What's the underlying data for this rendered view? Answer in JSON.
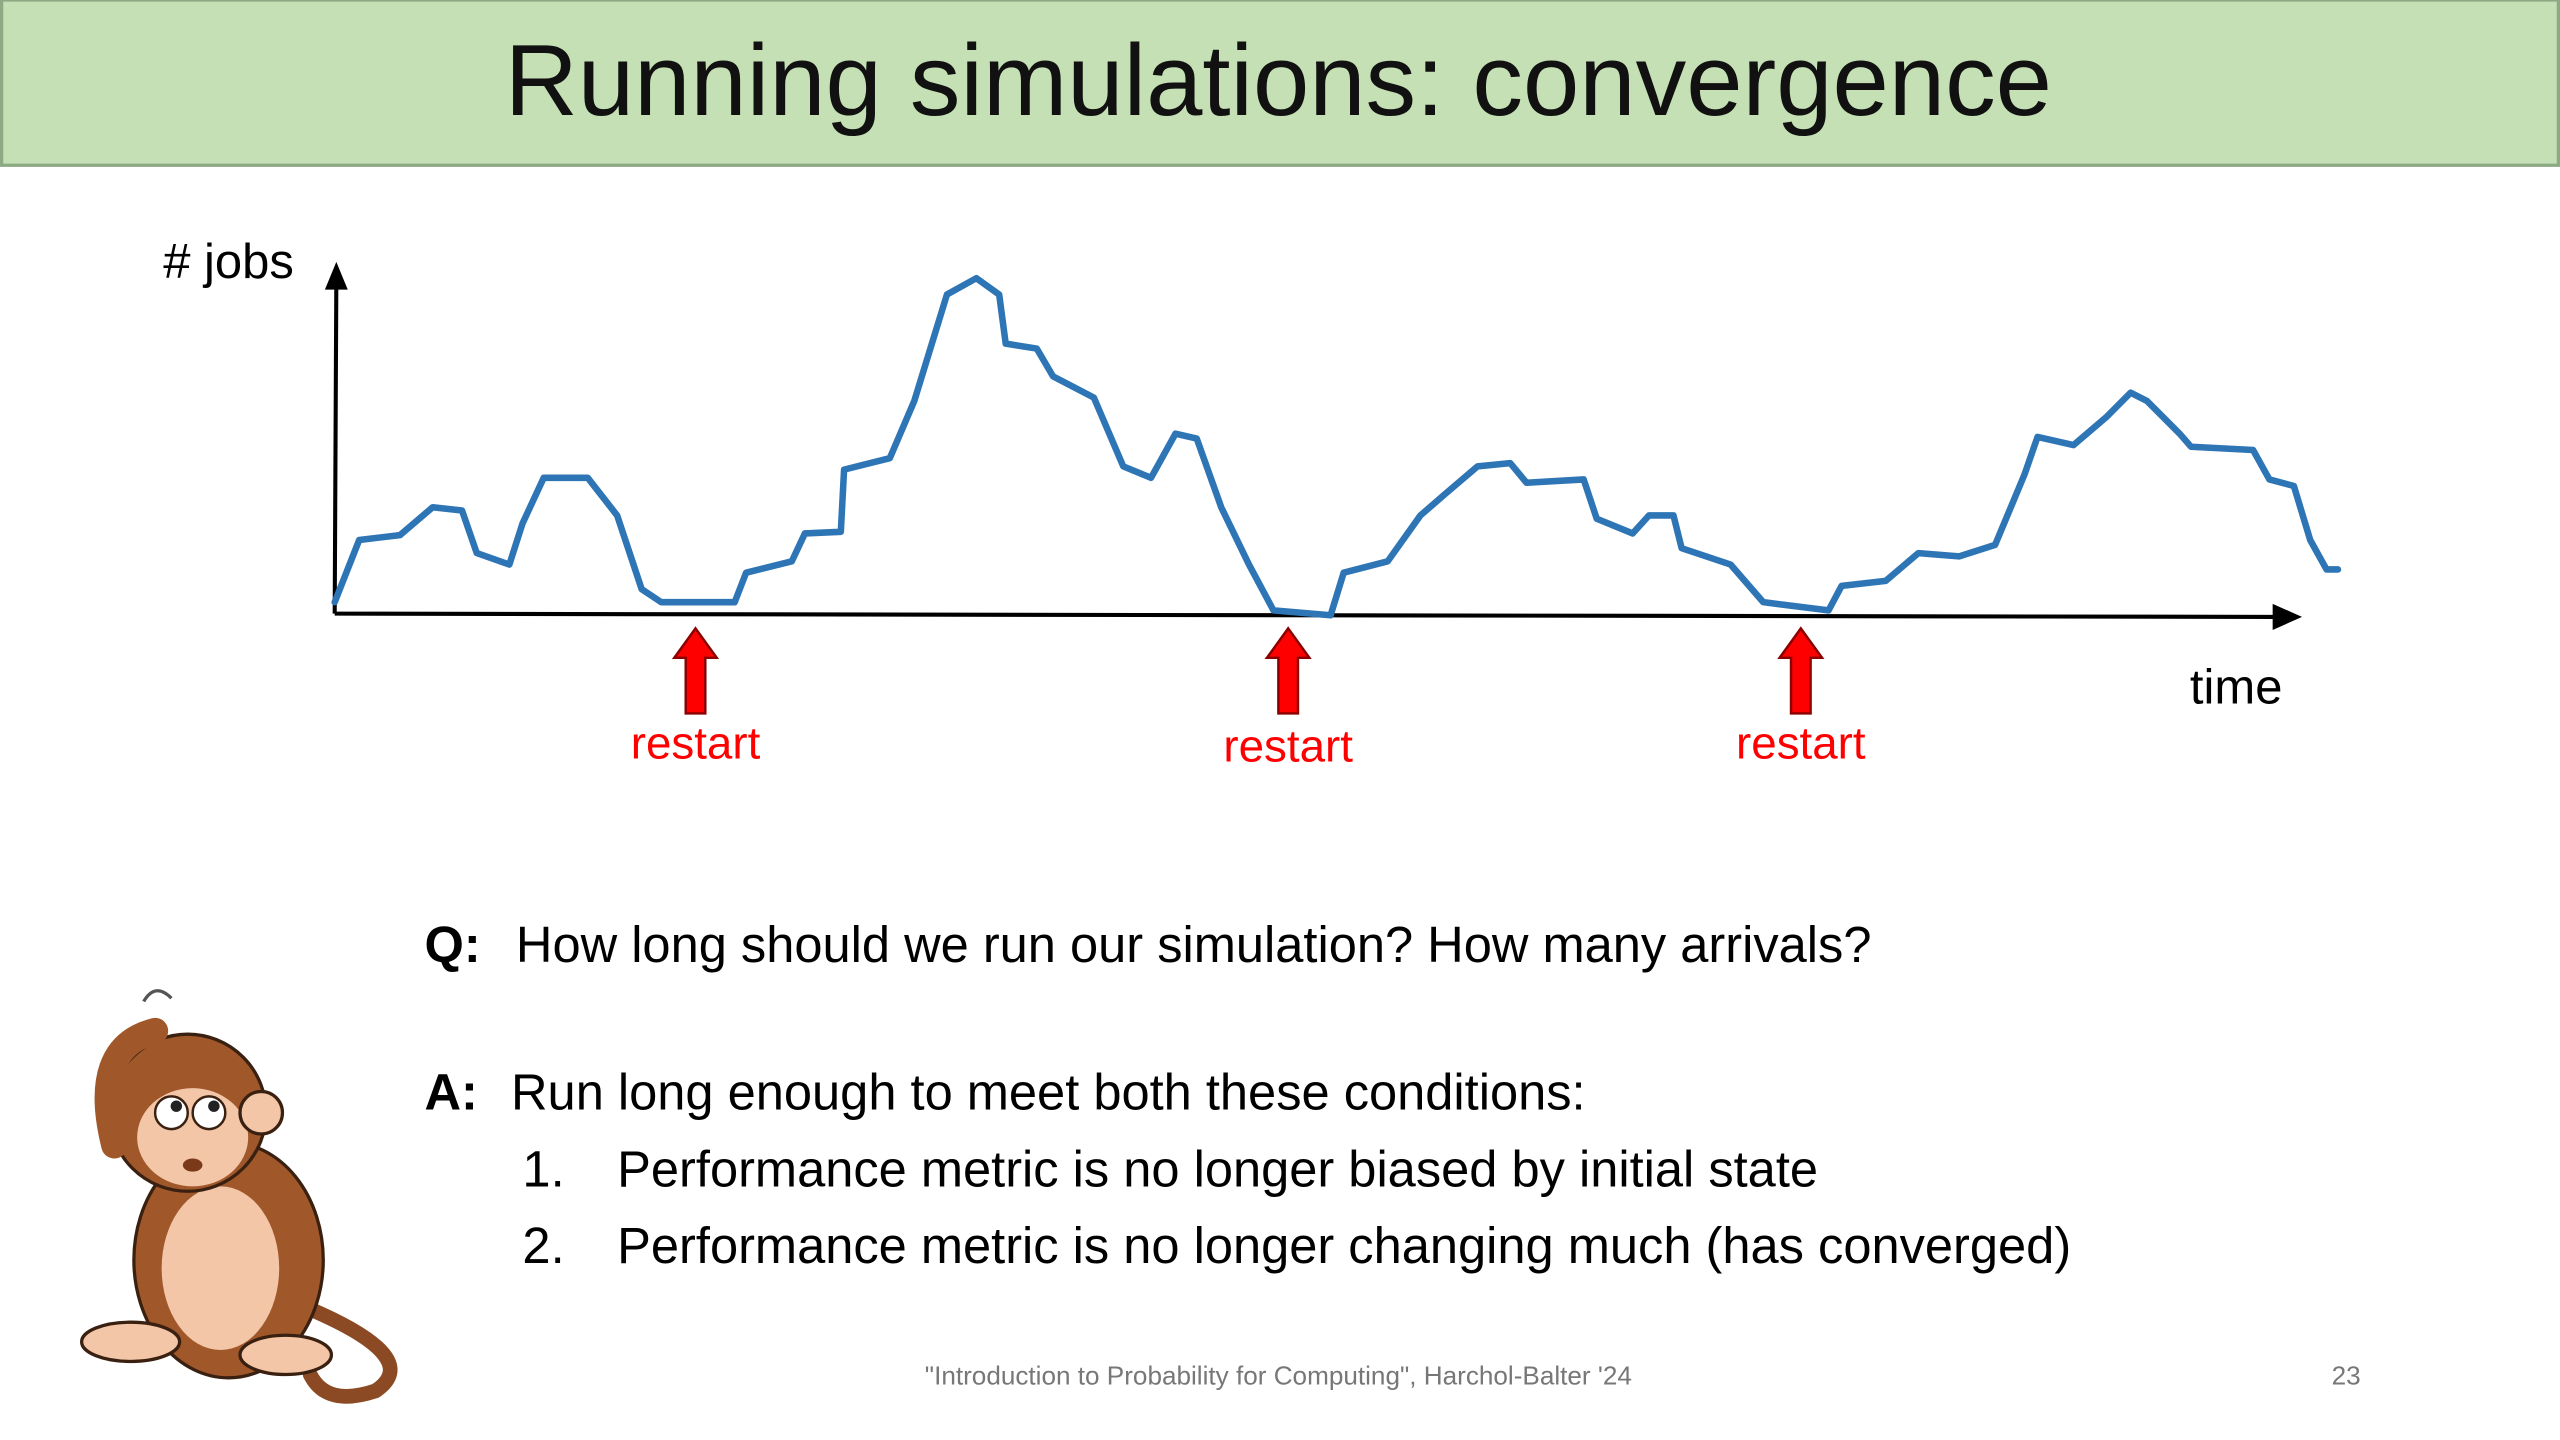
{
  "header": {
    "title": "Running simulations: convergence"
  },
  "diagram": {
    "y_label": "# jobs",
    "x_label": "time",
    "restarts": [
      "restart",
      "restart",
      "restart"
    ]
  },
  "qa": {
    "question": {
      "label": "Q:",
      "text": "How long should we run our simulation?  How many arrivals?"
    },
    "answer": {
      "label": "A:",
      "text": "Run long enough to meet both these conditions:",
      "items": [
        {
          "number": "1.",
          "text": "Performance metric is no longer biased by initial state"
        },
        {
          "number": "2.",
          "text": "Performance metric is no longer changing much (has converged)"
        }
      ]
    }
  },
  "footer": {
    "citation": "\"Introduction to Probability for Computing\", Harchol-Balter '24",
    "page": "23"
  }
}
